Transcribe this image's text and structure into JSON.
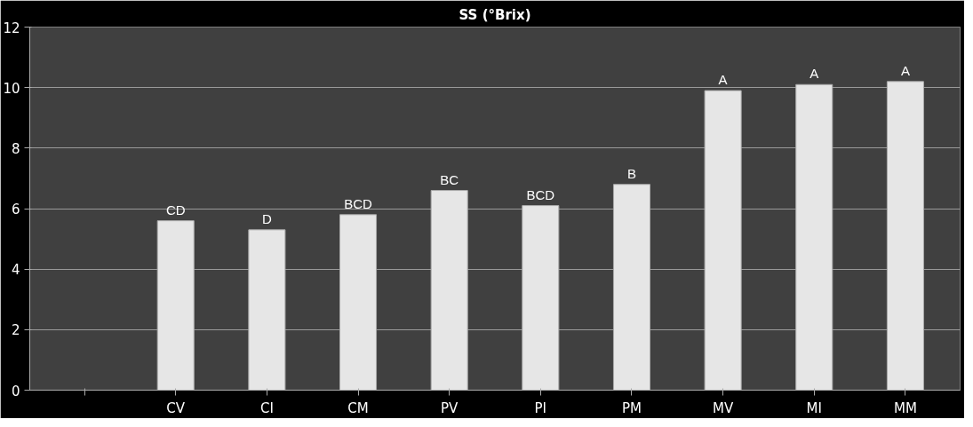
{
  "chart_data": {
    "type": "bar",
    "title": "SS (°Brix)",
    "categories": [
      null,
      "CV",
      "CI",
      "CM",
      "PV",
      "PI",
      "PM",
      "MV",
      "MI",
      "MM"
    ],
    "values": [
      null,
      5.6,
      5.3,
      5.8,
      6.6,
      6.1,
      6.8,
      9.9,
      10.1,
      10.2
    ],
    "value_labels": [
      null,
      "CD",
      "D",
      "BCD",
      "BC",
      "BCD",
      "B",
      "A",
      "A",
      "A"
    ],
    "color": "#e6e6e6",
    "ylim": [
      0,
      12
    ],
    "yticks": [
      0,
      2,
      4,
      6,
      8,
      10,
      12
    ],
    "grid": "y"
  }
}
